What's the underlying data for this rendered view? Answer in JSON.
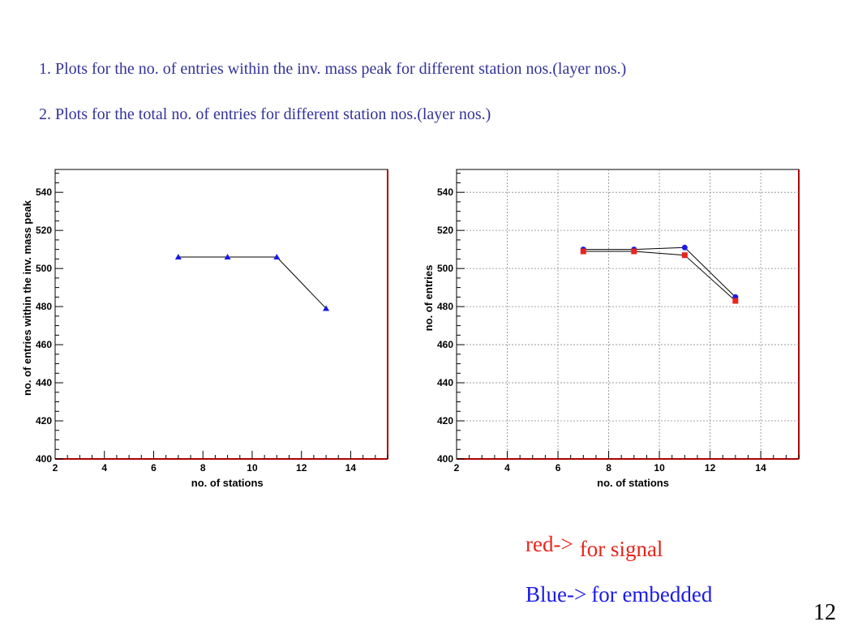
{
  "notes": {
    "line1": "1. Plots for the no. of entries within the inv. mass peak for different station nos.(layer nos.)",
    "line2": "2. Plots for the total no. of entries for different station nos.(layer nos.)"
  },
  "legend": {
    "red_key": "red->",
    "red_desc": "for signal",
    "blue_key": "Blue->",
    "blue_desc": "for embedded"
  },
  "page_number": "12",
  "colors": {
    "note_text": "#33339a",
    "signal": "#e8241c",
    "embedded": "#1a1ae6",
    "frame_accent": "#b00000",
    "grid": "#888888"
  },
  "chart_data": [
    {
      "id": "left",
      "type": "line",
      "xlabel": "no. of stations",
      "ylabel": "no. of entries within the inv. mass peak",
      "xlim": [
        2,
        15.5
      ],
      "ylim": [
        400,
        552
      ],
      "xticks": [
        2,
        4,
        6,
        8,
        10,
        12,
        14
      ],
      "yticks": [
        400,
        420,
        440,
        460,
        480,
        500,
        520,
        540
      ],
      "grid": false,
      "series": [
        {
          "color": "#1a1ae6",
          "marker": "triangle",
          "x": [
            7,
            9,
            11,
            13
          ],
          "y": [
            506,
            506,
            506,
            479
          ]
        }
      ]
    },
    {
      "id": "right",
      "type": "line",
      "xlabel": "no. of stations",
      "ylabel": "no. of entries",
      "xlim": [
        2,
        15.5
      ],
      "ylim": [
        400,
        552
      ],
      "xticks": [
        2,
        4,
        6,
        8,
        10,
        12,
        14
      ],
      "yticks": [
        400,
        420,
        440,
        460,
        480,
        500,
        520,
        540
      ],
      "grid": true,
      "series": [
        {
          "color": "#1a1ae6",
          "marker": "circle",
          "x": [
            7,
            9,
            11,
            13
          ],
          "y": [
            510,
            510,
            511,
            485
          ]
        },
        {
          "color": "#e8241c",
          "marker": "square",
          "x": [
            7,
            9,
            11,
            13
          ],
          "y": [
            509,
            509,
            507,
            483
          ]
        }
      ]
    }
  ]
}
